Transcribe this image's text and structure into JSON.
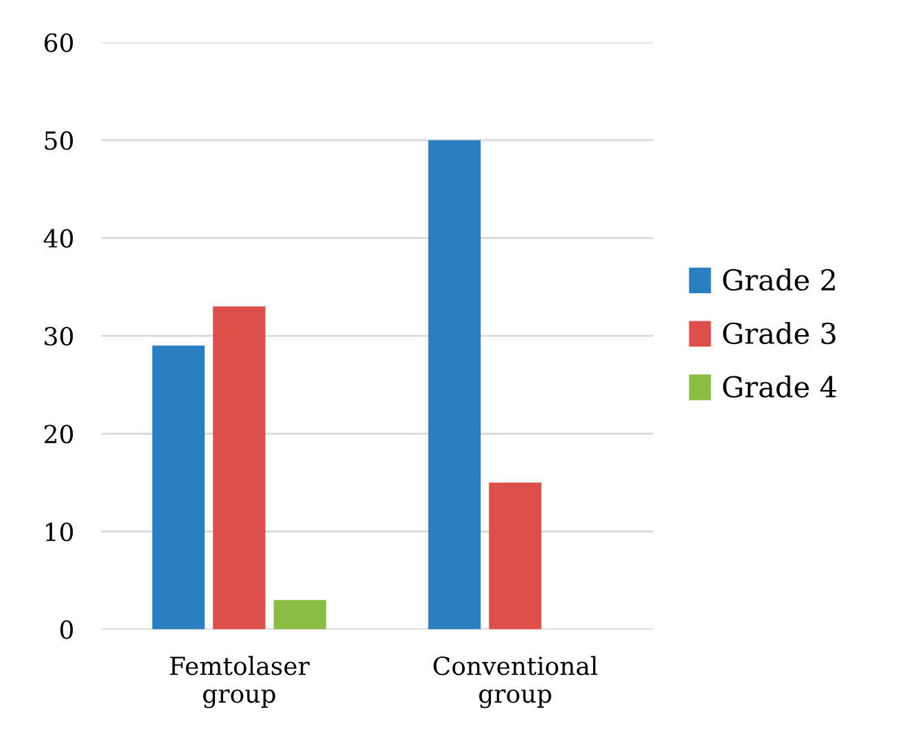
{
  "chart_data": {
    "type": "bar",
    "categories": [
      "Femtolaser\ngroup",
      "Conventional\ngroup"
    ],
    "series": [
      {
        "name": "Grade 2",
        "color": "#2a7fc1",
        "values": [
          29,
          50
        ]
      },
      {
        "name": "Grade 3",
        "color": "#dd4f4a",
        "values": [
          33,
          15
        ]
      },
      {
        "name": "Grade 4",
        "color": "#8bbd45",
        "values": [
          3,
          0
        ]
      }
    ],
    "ylim": [
      0,
      60
    ],
    "yticks": [
      0,
      10,
      20,
      30,
      40,
      50,
      60
    ],
    "grid": "y",
    "legend": "right"
  }
}
